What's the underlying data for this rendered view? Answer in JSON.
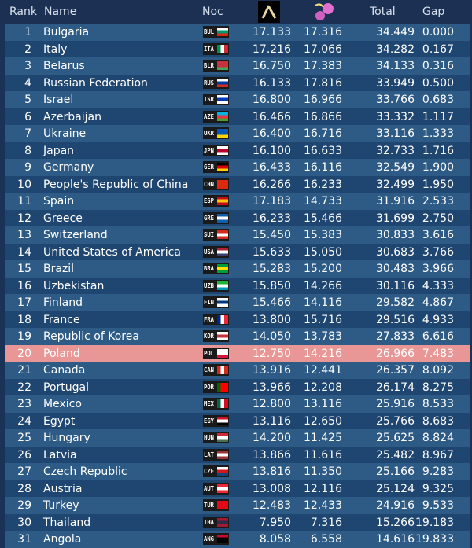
{
  "table": {
    "header": {
      "rank": "Rank",
      "name": "Name",
      "noc": "Noc",
      "total": "Total",
      "gap": "Gap"
    },
    "highlight_row": 19,
    "rows": [
      [
        1,
        "Bulgaria",
        "BUL",
        "17.133",
        "17.316",
        "34.449",
        "0.000"
      ],
      [
        2,
        "Italy",
        "ITA",
        "17.216",
        "17.066",
        "34.282",
        "0.167"
      ],
      [
        3,
        "Belarus",
        "BLR",
        "16.750",
        "17.383",
        "34.133",
        "0.316"
      ],
      [
        4,
        "Russian Federation",
        "RUS",
        "16.133",
        "17.816",
        "33.949",
        "0.500"
      ],
      [
        5,
        "Israel",
        "ISR",
        "16.800",
        "16.966",
        "33.766",
        "0.683"
      ],
      [
        6,
        "Azerbaijan",
        "AZE",
        "16.466",
        "16.866",
        "33.332",
        "1.117"
      ],
      [
        7,
        "Ukraine",
        "UKR",
        "16.400",
        "16.716",
        "33.116",
        "1.333"
      ],
      [
        8,
        "Japan",
        "JPN",
        "16.100",
        "16.633",
        "32.733",
        "1.716"
      ],
      [
        9,
        "Germany",
        "GER",
        "16.433",
        "16.116",
        "32.549",
        "1.900"
      ],
      [
        10,
        "People's Republic of China",
        "CHN",
        "16.266",
        "16.233",
        "32.499",
        "1.950"
      ],
      [
        11,
        "Spain",
        "ESP",
        "17.183",
        "14.733",
        "31.916",
        "2.533"
      ],
      [
        12,
        "Greece",
        "GRE",
        "16.233",
        "15.466",
        "31.699",
        "2.750"
      ],
      [
        13,
        "Switzerland",
        "SUI",
        "15.450",
        "15.383",
        "30.833",
        "3.616"
      ],
      [
        14,
        "United States of America",
        "USA",
        "15.633",
        "15.050",
        "30.683",
        "3.766"
      ],
      [
        15,
        "Brazil",
        "BRA",
        "15.283",
        "15.200",
        "30.483",
        "3.966"
      ],
      [
        16,
        "Uzbekistan",
        "UZB",
        "15.850",
        "14.266",
        "30.116",
        "4.333"
      ],
      [
        17,
        "Finland",
        "FIN",
        "15.466",
        "14.116",
        "29.582",
        "4.867"
      ],
      [
        18,
        "France",
        "FRA",
        "13.800",
        "15.716",
        "29.516",
        "4.933"
      ],
      [
        19,
        "Republic of Korea",
        "KOR",
        "14.050",
        "13.783",
        "27.833",
        "6.616"
      ],
      [
        20,
        "Poland",
        "POL",
        "12.750",
        "14.216",
        "26.966",
        "7.483"
      ],
      [
        21,
        "Canada",
        "CAN",
        "13.916",
        "12.441",
        "26.357",
        "8.092"
      ],
      [
        22,
        "Portugal",
        "POR",
        "13.966",
        "12.208",
        "26.174",
        "8.275"
      ],
      [
        23,
        "Mexico",
        "MEX",
        "12.800",
        "13.116",
        "25.916",
        "8.533"
      ],
      [
        24,
        "Egypt",
        "EGY",
        "13.116",
        "12.650",
        "25.766",
        "8.683"
      ],
      [
        25,
        "Hungary",
        "HUN",
        "14.200",
        "11.425",
        "25.625",
        "8.824"
      ],
      [
        26,
        "Latvia",
        "LAT",
        "13.866",
        "11.616",
        "25.482",
        "8.967"
      ],
      [
        27,
        "Czech Republic",
        "CZE",
        "13.816",
        "11.350",
        "25.166",
        "9.283"
      ],
      [
        28,
        "Austria",
        "AUT",
        "13.008",
        "12.116",
        "25.124",
        "9.325"
      ],
      [
        29,
        "Turkey",
        "TUR",
        "12.483",
        "12.433",
        "24.916",
        "9.533"
      ],
      [
        30,
        "Thailand",
        "THA",
        "7.950",
        "7.316",
        "15.266",
        "19.183"
      ],
      [
        31,
        "Angola",
        "ANG",
        "8.058",
        "6.558",
        "14.616",
        "19.833"
      ]
    ]
  }
}
